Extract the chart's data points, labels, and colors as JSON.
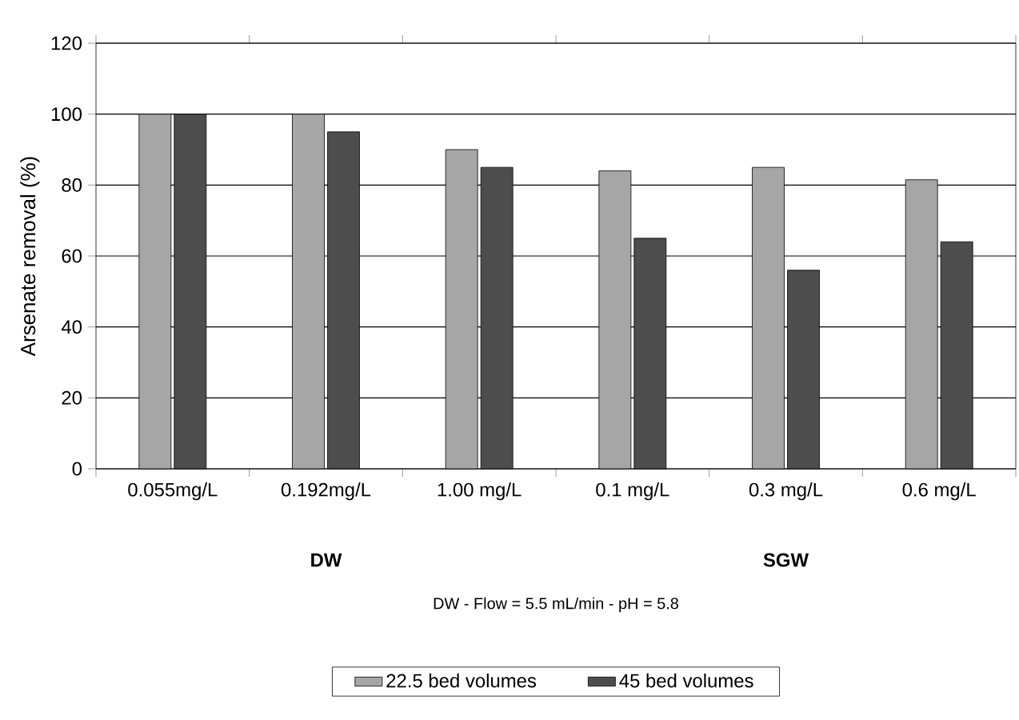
{
  "chart_data": {
    "type": "bar",
    "ylabel": "Arsenate removal (%)",
    "categories": [
      "0.055mg/L",
      "0.192mg/L",
      "1.00 mg/L",
      "0.1 mg/L",
      "0.3 mg/L",
      "0.6 mg/L"
    ],
    "series": [
      {
        "name": "22.5 bed volumes",
        "color": "#a6a6a6",
        "values": [
          100,
          100,
          90,
          84,
          85,
          81.5
        ]
      },
      {
        "name": "45 bed volumes",
        "color": "#4d4d4d",
        "values": [
          100,
          95,
          85,
          65,
          56,
          64
        ]
      }
    ],
    "annotations": [
      "DW",
      "SGW",
      "DW - Flow = 5.5 mL/min - pH = 5.8"
    ],
    "ylim": [
      0,
      120
    ],
    "yticks": [
      0,
      20,
      40,
      60,
      80,
      100,
      120
    ],
    "grid": "y",
    "legend": "bottom"
  }
}
